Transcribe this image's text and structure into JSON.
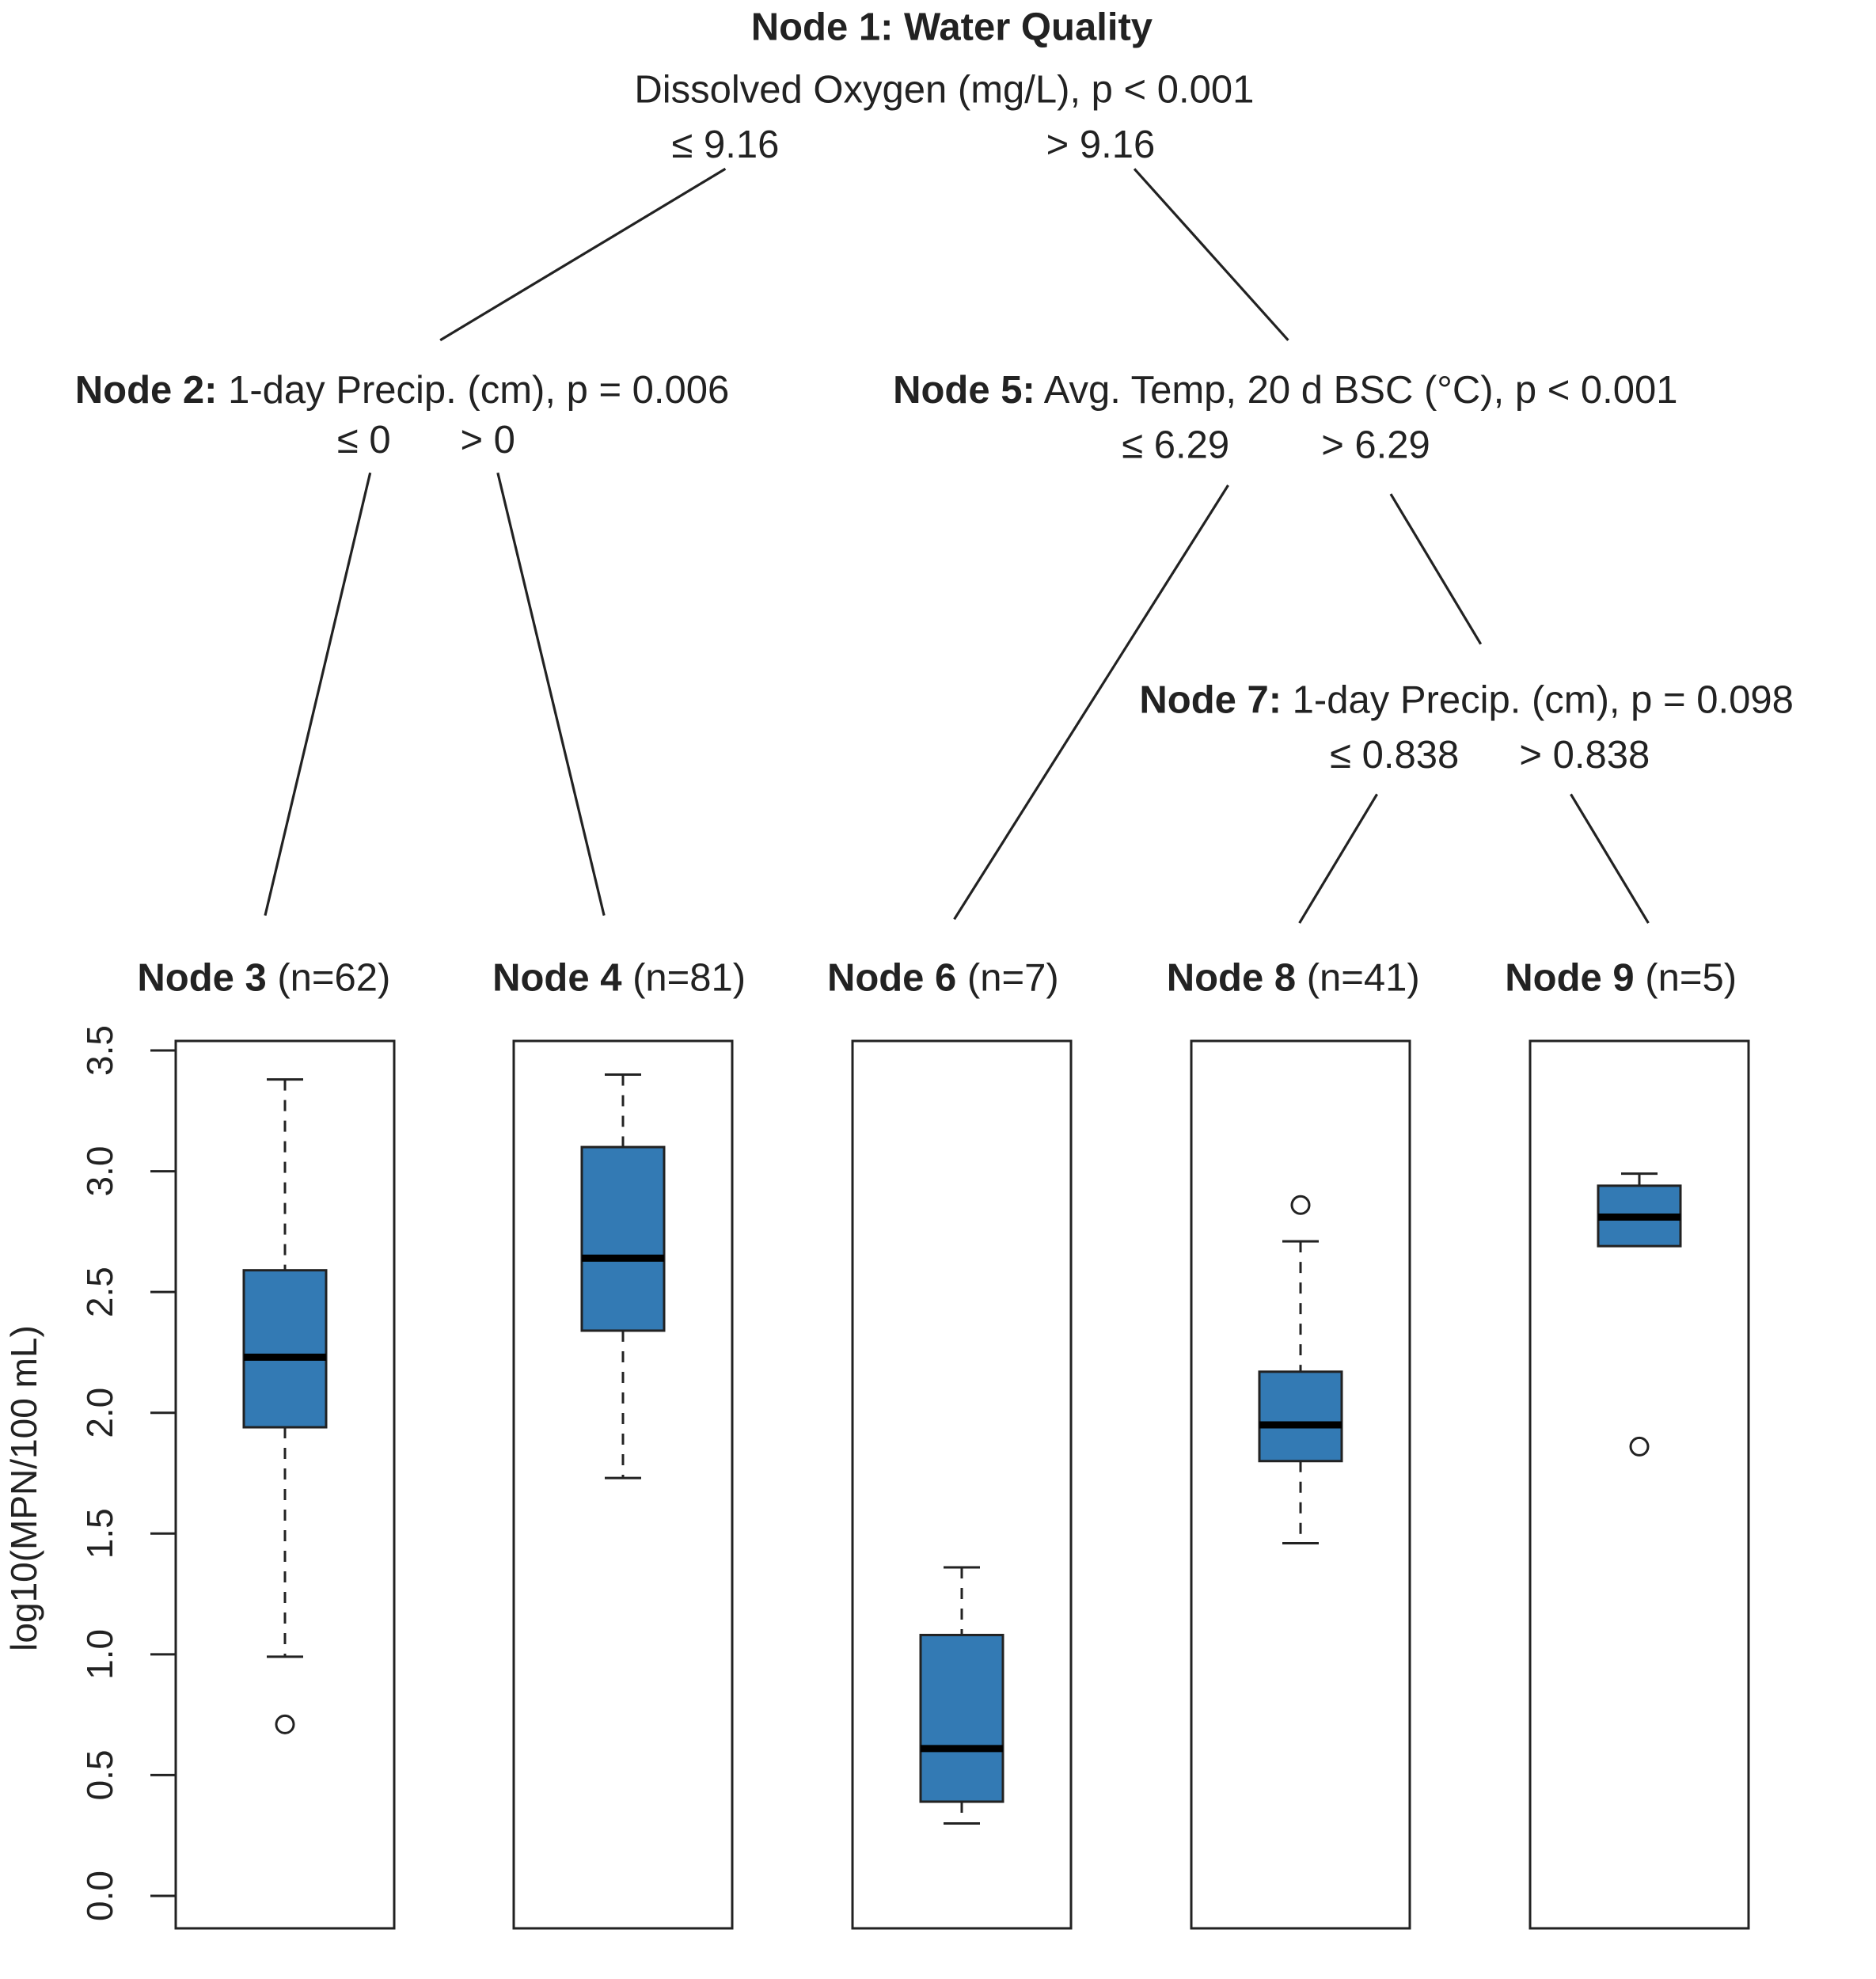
{
  "chart_data": {
    "type": "boxplot-tree",
    "ylabel": "log10(MPN/100 mL)",
    "ylim": [
      0,
      3.5
    ],
    "yticks": [
      "0.0",
      "0.5",
      "1.0",
      "1.5",
      "2.0",
      "2.5",
      "3.0",
      "3.5"
    ],
    "box_color": "#337ab4",
    "tree": {
      "node1": {
        "bold": "Node 1: Water Quality",
        "text": "Dissolved Oxygen (mg/L), p < 0.001",
        "left": "≤ 9.16",
        "right": "> 9.16"
      },
      "node2": {
        "bold": "Node 2:",
        "text": " 1-day Precip. (cm), p = 0.006",
        "left": "≤ 0",
        "right": "> 0"
      },
      "node5": {
        "bold": "Node 5:",
        "text": " Avg. Temp, 20 d BSC (°C), p < 0.001",
        "left": "≤ 6.29",
        "right": "> 6.29"
      },
      "node7": {
        "bold": "Node 7:",
        "text": " 1-day Precip. (cm), p = 0.098",
        "left": "≤ 0.838",
        "right": "> 0.838"
      }
    },
    "leaves": [
      {
        "bold": "Node 3",
        "n": " (n=62)",
        "whisker_high": 3.38,
        "q3": 2.59,
        "median": 2.23,
        "q1": 1.94,
        "whisker_low": 0.99,
        "outliers": [
          0.71
        ]
      },
      {
        "bold": "Node 4",
        "n": " (n=81)",
        "whisker_high": 3.4,
        "q3": 3.1,
        "median": 2.64,
        "q1": 2.34,
        "whisker_low": 1.73,
        "outliers": []
      },
      {
        "bold": "Node 6",
        "n": " (n=7)",
        "whisker_high": 1.36,
        "q3": 1.08,
        "median": 0.61,
        "q1": 0.39,
        "whisker_low": 0.3,
        "outliers": []
      },
      {
        "bold": "Node 8",
        "n": " (n=41)",
        "whisker_high": 2.71,
        "q3": 2.17,
        "median": 1.95,
        "q1": 1.8,
        "whisker_low": 1.46,
        "outliers": [
          2.86
        ]
      },
      {
        "bold": "Node 9",
        "n": " (n=5)",
        "whisker_high": 2.99,
        "q3": 2.94,
        "median": 2.81,
        "q1": 2.69,
        "whisker_low": 2.69,
        "outliers": [
          1.86
        ]
      }
    ]
  }
}
